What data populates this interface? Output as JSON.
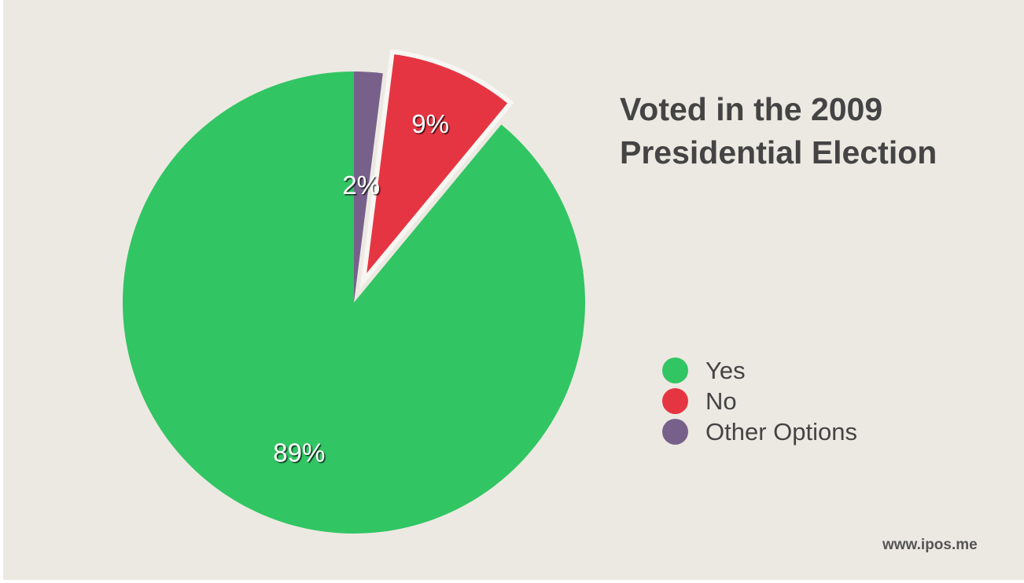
{
  "chart_data": {
    "type": "pie",
    "title_lines": [
      "Voted in the 2009",
      "Presidential Election"
    ],
    "slices": [
      {
        "label": "Yes",
        "value": 89,
        "value_label": "89%",
        "color": "#32c563",
        "exploded": false
      },
      {
        "label": "No",
        "value": 9,
        "value_label": "9%",
        "color": "#e63542",
        "exploded": true
      },
      {
        "label": "Other Options",
        "value": 2,
        "value_label": "2%",
        "color": "#77618b",
        "exploded": false
      }
    ],
    "legend_position": "right"
  },
  "footer": {
    "text": "www.ipos.me"
  }
}
